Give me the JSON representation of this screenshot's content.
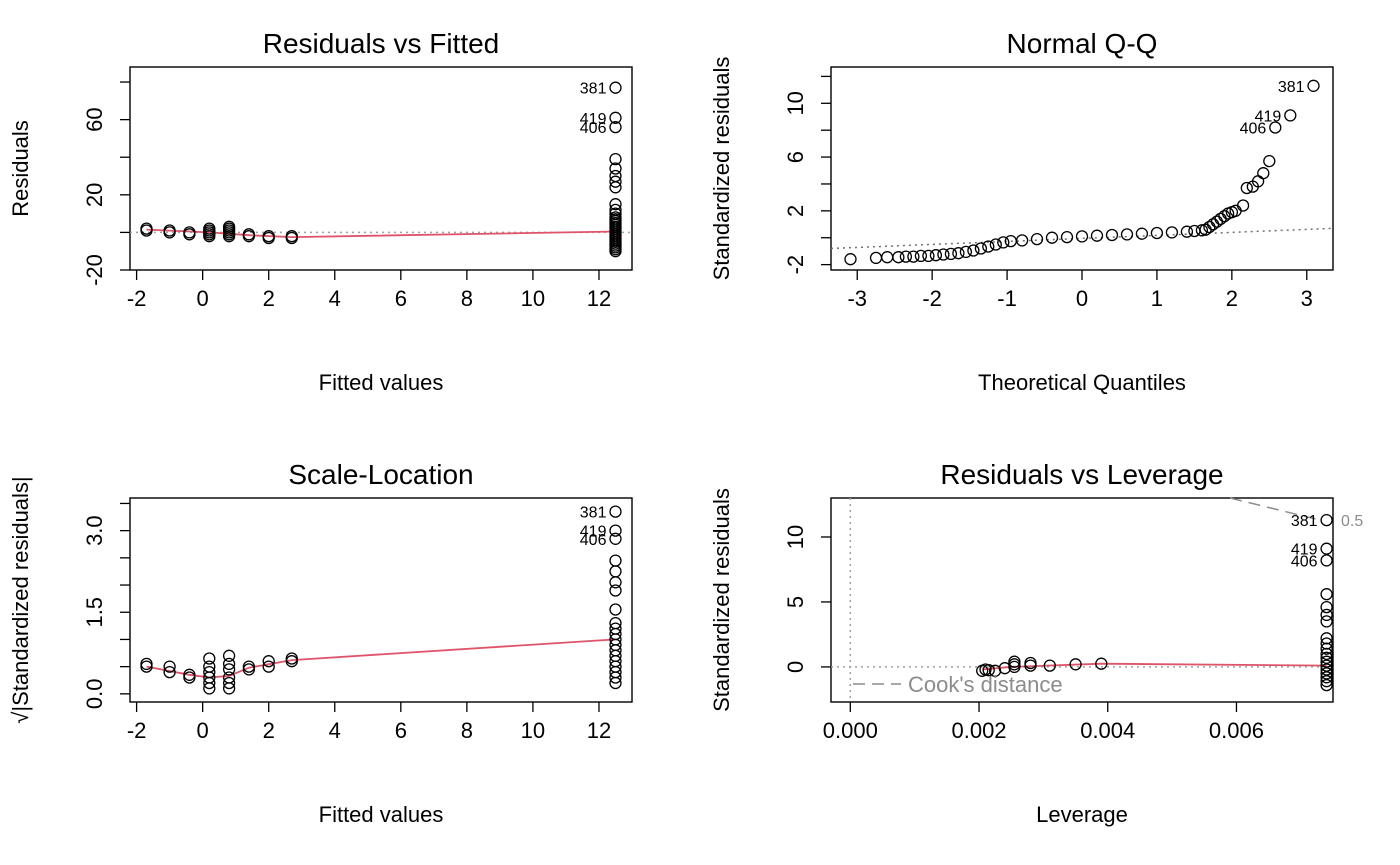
{
  "chart_data": [
    {
      "type": "scatter",
      "title": "Residuals vs Fitted",
      "xlabel": "Fitted values",
      "ylabel": "Residuals",
      "xlim": [
        -2.2,
        13.0
      ],
      "ylim": [
        -20,
        88
      ],
      "xticks": [
        -2,
        0,
        2,
        4,
        6,
        8,
        10,
        12
      ],
      "yticks": [
        -20,
        20,
        60
      ],
      "yticks_minor": [
        0,
        40,
        80
      ],
      "reference_line": {
        "y": 0,
        "style": "dotted",
        "color": "#a0a0a0"
      },
      "points": [
        [
          -1.7,
          2
        ],
        [
          -1.7,
          1
        ],
        [
          -1.0,
          1
        ],
        [
          -1.0,
          0
        ],
        [
          -0.4,
          0
        ],
        [
          -0.4,
          -1
        ],
        [
          0.2,
          2
        ],
        [
          0.2,
          1
        ],
        [
          0.2,
          0
        ],
        [
          0.2,
          -1
        ],
        [
          0.2,
          -2
        ],
        [
          0.8,
          3
        ],
        [
          0.8,
          2
        ],
        [
          0.8,
          1
        ],
        [
          0.8,
          0
        ],
        [
          0.8,
          -1
        ],
        [
          0.8,
          -2
        ],
        [
          1.4,
          -1
        ],
        [
          1.4,
          -2
        ],
        [
          2.0,
          -2
        ],
        [
          2.0,
          -3
        ],
        [
          2.7,
          -2
        ],
        [
          2.7,
          -3
        ],
        [
          12.5,
          -10
        ],
        [
          12.5,
          -9
        ],
        [
          12.5,
          -8
        ],
        [
          12.5,
          -7
        ],
        [
          12.5,
          -6
        ],
        [
          12.5,
          -5
        ],
        [
          12.5,
          -4
        ],
        [
          12.5,
          -3
        ],
        [
          12.5,
          -2
        ],
        [
          12.5,
          -1
        ],
        [
          12.5,
          0
        ],
        [
          12.5,
          1
        ],
        [
          12.5,
          2
        ],
        [
          12.5,
          3
        ],
        [
          12.5,
          4
        ],
        [
          12.5,
          5
        ],
        [
          12.5,
          6
        ],
        [
          12.5,
          7
        ],
        [
          12.5,
          8
        ],
        [
          12.5,
          10
        ],
        [
          12.5,
          12
        ],
        [
          12.5,
          15
        ],
        [
          12.5,
          24
        ],
        [
          12.5,
          27
        ],
        [
          12.5,
          30
        ],
        [
          12.5,
          34
        ],
        [
          12.5,
          39
        ],
        [
          12.5,
          56
        ],
        [
          12.5,
          61
        ],
        [
          12.5,
          77
        ]
      ],
      "smoother": {
        "color": "#df536b",
        "points": [
          [
            -1.7,
            1.5
          ],
          [
            0.2,
            0
          ],
          [
            1.4,
            -1.5
          ],
          [
            2.7,
            -2.5
          ],
          [
            12.5,
            0.5
          ]
        ]
      },
      "labeled_points": [
        {
          "label": "381",
          "x": 12.5,
          "y": 77
        },
        {
          "label": "419",
          "x": 12.5,
          "y": 61
        },
        {
          "label": "406",
          "x": 12.5,
          "y": 56
        }
      ]
    },
    {
      "type": "scatter",
      "title": "Normal Q-Q",
      "xlabel": "Theoretical Quantiles",
      "ylabel": "Standardized residuals",
      "xlim": [
        -3.35,
        3.35
      ],
      "ylim": [
        -2.4,
        12.7
      ],
      "xticks": [
        -3,
        -2,
        -1,
        0,
        1,
        2,
        3
      ],
      "yticks": [
        -2,
        2,
        6,
        10
      ],
      "yticks_minor": [
        0,
        4,
        8,
        12
      ],
      "reference_line": {
        "points": [
          [
            -3.35,
            -0.8
          ],
          [
            3.35,
            0.7
          ]
        ],
        "style": "dotted",
        "color": "#707070"
      },
      "points": [
        [
          -3.09,
          -1.6
        ],
        [
          -2.75,
          -1.5
        ],
        [
          -2.6,
          -1.45
        ],
        [
          -2.45,
          -1.45
        ],
        [
          -2.35,
          -1.4
        ],
        [
          -2.25,
          -1.4
        ],
        [
          -2.15,
          -1.35
        ],
        [
          -2.05,
          -1.35
        ],
        [
          -1.95,
          -1.3
        ],
        [
          -1.85,
          -1.25
        ],
        [
          -1.75,
          -1.2
        ],
        [
          -1.65,
          -1.15
        ],
        [
          -1.55,
          -1.05
        ],
        [
          -1.45,
          -0.95
        ],
        [
          -1.35,
          -0.8
        ],
        [
          -1.25,
          -0.65
        ],
        [
          -1.15,
          -0.5
        ],
        [
          -1.05,
          -0.35
        ],
        [
          -0.95,
          -0.25
        ],
        [
          -0.8,
          -0.2
        ],
        [
          -0.6,
          -0.1
        ],
        [
          -0.4,
          0
        ],
        [
          -0.2,
          0.05
        ],
        [
          0,
          0.1
        ],
        [
          0.2,
          0.15
        ],
        [
          0.4,
          0.2
        ],
        [
          0.6,
          0.25
        ],
        [
          0.8,
          0.3
        ],
        [
          1.0,
          0.35
        ],
        [
          1.2,
          0.4
        ],
        [
          1.4,
          0.45
        ],
        [
          1.5,
          0.5
        ],
        [
          1.6,
          0.55
        ],
        [
          1.65,
          0.6
        ],
        [
          1.7,
          0.8
        ],
        [
          1.75,
          1.0
        ],
        [
          1.8,
          1.2
        ],
        [
          1.85,
          1.4
        ],
        [
          1.9,
          1.6
        ],
        [
          1.95,
          1.8
        ],
        [
          2.0,
          1.9
        ],
        [
          2.05,
          2.0
        ],
        [
          2.15,
          2.4
        ],
        [
          2.2,
          3.7
        ],
        [
          2.28,
          3.8
        ],
        [
          2.35,
          4.2
        ],
        [
          2.42,
          4.8
        ],
        [
          2.5,
          5.7
        ],
        [
          2.58,
          8.2
        ],
        [
          2.78,
          9.1
        ],
        [
          3.09,
          11.3
        ]
      ],
      "labeled_points": [
        {
          "label": "381",
          "x": 3.09,
          "y": 11.3
        },
        {
          "label": "419",
          "x": 2.78,
          "y": 9.1
        },
        {
          "label": "406",
          "x": 2.58,
          "y": 8.2
        }
      ]
    },
    {
      "type": "scatter",
      "title": "Scale-Location",
      "xlabel": "Fitted values",
      "ylabel": "√|Standardized residuals|",
      "xlim": [
        -2.2,
        13.0
      ],
      "ylim": [
        -0.15,
        3.6
      ],
      "xticks": [
        -2,
        0,
        2,
        4,
        6,
        8,
        10,
        12
      ],
      "yticks": [
        0.0,
        1.5,
        3.0
      ],
      "ytick_labels": [
        "0.0",
        "1.5",
        "3.0"
      ],
      "yticks_minor": [
        0.5,
        1.0,
        2.0,
        2.5,
        3.5
      ],
      "points": [
        [
          -1.7,
          0.55
        ],
        [
          -1.7,
          0.5
        ],
        [
          -1.0,
          0.5
        ],
        [
          -1.0,
          0.4
        ],
        [
          -0.4,
          0.35
        ],
        [
          -0.4,
          0.3
        ],
        [
          0.2,
          0.1
        ],
        [
          0.2,
          0.2
        ],
        [
          0.2,
          0.3
        ],
        [
          0.2,
          0.4
        ],
        [
          0.2,
          0.5
        ],
        [
          0.2,
          0.65
        ],
        [
          0.8,
          0.1
        ],
        [
          0.8,
          0.2
        ],
        [
          0.8,
          0.3
        ],
        [
          0.8,
          0.45
        ],
        [
          0.8,
          0.55
        ],
        [
          0.8,
          0.7
        ],
        [
          1.4,
          0.45
        ],
        [
          1.4,
          0.5
        ],
        [
          2.0,
          0.5
        ],
        [
          2.0,
          0.6
        ],
        [
          2.7,
          0.6
        ],
        [
          2.7,
          0.65
        ],
        [
          12.5,
          0.2
        ],
        [
          12.5,
          0.3
        ],
        [
          12.5,
          0.4
        ],
        [
          12.5,
          0.5
        ],
        [
          12.5,
          0.6
        ],
        [
          12.5,
          0.7
        ],
        [
          12.5,
          0.8
        ],
        [
          12.5,
          0.9
        ],
        [
          12.5,
          1.0
        ],
        [
          12.5,
          1.1
        ],
        [
          12.5,
          1.2
        ],
        [
          12.5,
          1.3
        ],
        [
          12.5,
          1.55
        ],
        [
          12.5,
          1.9
        ],
        [
          12.5,
          2.05
        ],
        [
          12.5,
          2.25
        ],
        [
          12.5,
          2.45
        ],
        [
          12.5,
          2.85
        ],
        [
          12.5,
          3.0
        ],
        [
          12.5,
          3.35
        ]
      ],
      "smoother": {
        "color": "#df536b",
        "points": [
          [
            -1.7,
            0.5
          ],
          [
            -0.4,
            0.35
          ],
          [
            0.2,
            0.3
          ],
          [
            0.8,
            0.33
          ],
          [
            1.4,
            0.48
          ],
          [
            2.7,
            0.62
          ],
          [
            12.5,
            1.0
          ]
        ]
      },
      "labeled_points": [
        {
          "label": "381",
          "x": 12.5,
          "y": 3.35
        },
        {
          "label": "419",
          "x": 12.5,
          "y": 3.0
        },
        {
          "label": "406",
          "x": 12.5,
          "y": 2.85
        }
      ]
    },
    {
      "type": "scatter",
      "title": "Residuals vs Leverage",
      "xlabel": "Leverage",
      "ylabel": "Standardized residuals",
      "xlim": [
        -0.0003,
        0.0075
      ],
      "ylim": [
        -2.7,
        13.0
      ],
      "xticks": [
        0.0,
        0.002,
        0.004,
        0.006
      ],
      "xtick_labels": [
        "0.000",
        "0.002",
        "0.004",
        "0.006"
      ],
      "yticks": [
        0,
        5,
        10
      ],
      "reference_lines": [
        {
          "y": 0,
          "style": "dotted",
          "color": "#a0a0a0"
        },
        {
          "x": 0,
          "style": "dotted",
          "color": "#a0a0a0"
        }
      ],
      "cooks_distance": {
        "legend_label": "Cook's distance",
        "contour_label": "0.5",
        "color": "#8c8c8c",
        "contour": [
          [
            0.0059,
            13.0
          ],
          [
            0.0073,
            11.3
          ]
        ]
      },
      "points": [
        [
          0.00205,
          -0.3
        ],
        [
          0.0021,
          -0.2
        ],
        [
          0.00215,
          -0.25
        ],
        [
          0.00225,
          -0.3
        ],
        [
          0.0024,
          -0.1
        ],
        [
          0.00255,
          0.0
        ],
        [
          0.00255,
          0.2
        ],
        [
          0.00255,
          0.4
        ],
        [
          0.0028,
          0.1
        ],
        [
          0.0028,
          0.3
        ],
        [
          0.0031,
          0.1
        ],
        [
          0.0035,
          0.2
        ],
        [
          0.0039,
          0.25
        ],
        [
          0.0074,
          -1.4
        ],
        [
          0.0074,
          -1.1
        ],
        [
          0.0074,
          -0.8
        ],
        [
          0.0074,
          -0.5
        ],
        [
          0.0074,
          -0.2
        ],
        [
          0.0074,
          0.1
        ],
        [
          0.0074,
          0.4
        ],
        [
          0.0074,
          0.7
        ],
        [
          0.0074,
          1.0
        ],
        [
          0.0074,
          1.4
        ],
        [
          0.0074,
          1.8
        ],
        [
          0.0074,
          2.2
        ],
        [
          0.0074,
          3.5
        ],
        [
          0.0074,
          4.0
        ],
        [
          0.0074,
          4.6
        ],
        [
          0.0074,
          5.6
        ],
        [
          0.0074,
          8.2
        ],
        [
          0.0074,
          9.1
        ],
        [
          0.0074,
          11.3
        ]
      ],
      "smoother": {
        "color": "#df536b",
        "points": [
          [
            0.00205,
            -0.2
          ],
          [
            0.0025,
            0.0
          ],
          [
            0.0039,
            0.25
          ],
          [
            0.0074,
            0.1
          ]
        ]
      },
      "labeled_points": [
        {
          "label": "381",
          "x": 0.0074,
          "y": 11.3
        },
        {
          "label": "419",
          "x": 0.0074,
          "y": 9.1
        },
        {
          "label": "406",
          "x": 0.0074,
          "y": 8.2
        }
      ]
    }
  ]
}
